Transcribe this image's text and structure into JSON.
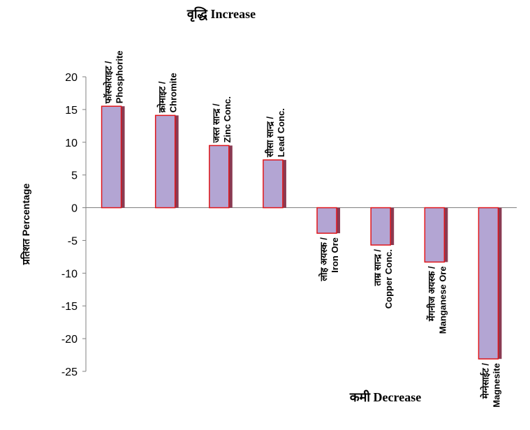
{
  "chart_data": {
    "type": "bar",
    "categories": [
      [
        "फॉस्फोराइट /",
        "Phosphorite"
      ],
      [
        "क्रोमाइट /",
        "Chromite"
      ],
      [
        "जस्त सान्द्र /",
        "Zinc Conc."
      ],
      [
        "सीसा सान्द्र /",
        "Lead Conc."
      ],
      [
        "लोह अयस्क /",
        "Iron Ore"
      ],
      [
        "ताम्र सान्द्र /",
        "Copper Conc."
      ],
      [
        "मेंगनीज अयस्क /",
        "Manganese Ore"
      ],
      [
        "मेग्नेसाईट /",
        "Magnesite"
      ]
    ],
    "values": [
      15.5,
      14.1,
      9.5,
      7.3,
      -3.9,
      -5.7,
      -8.3,
      -23.1
    ],
    "ylabel": "प्रतिशत Percentage",
    "ylim": [
      -25,
      20
    ],
    "yticks": [
      20,
      15,
      10,
      5,
      0,
      -5,
      -10,
      -15,
      -20,
      -25
    ],
    "annotations": {
      "increase": "वृद्धि Increase",
      "decrease": "कमी Decrease"
    },
    "colors": {
      "bar_fill": "#b3a5d3",
      "bar_edge": "#e0161a",
      "bar_shadow": "#8a3a52",
      "axis": "#808080"
    },
    "legend": "none",
    "grid": false
  }
}
